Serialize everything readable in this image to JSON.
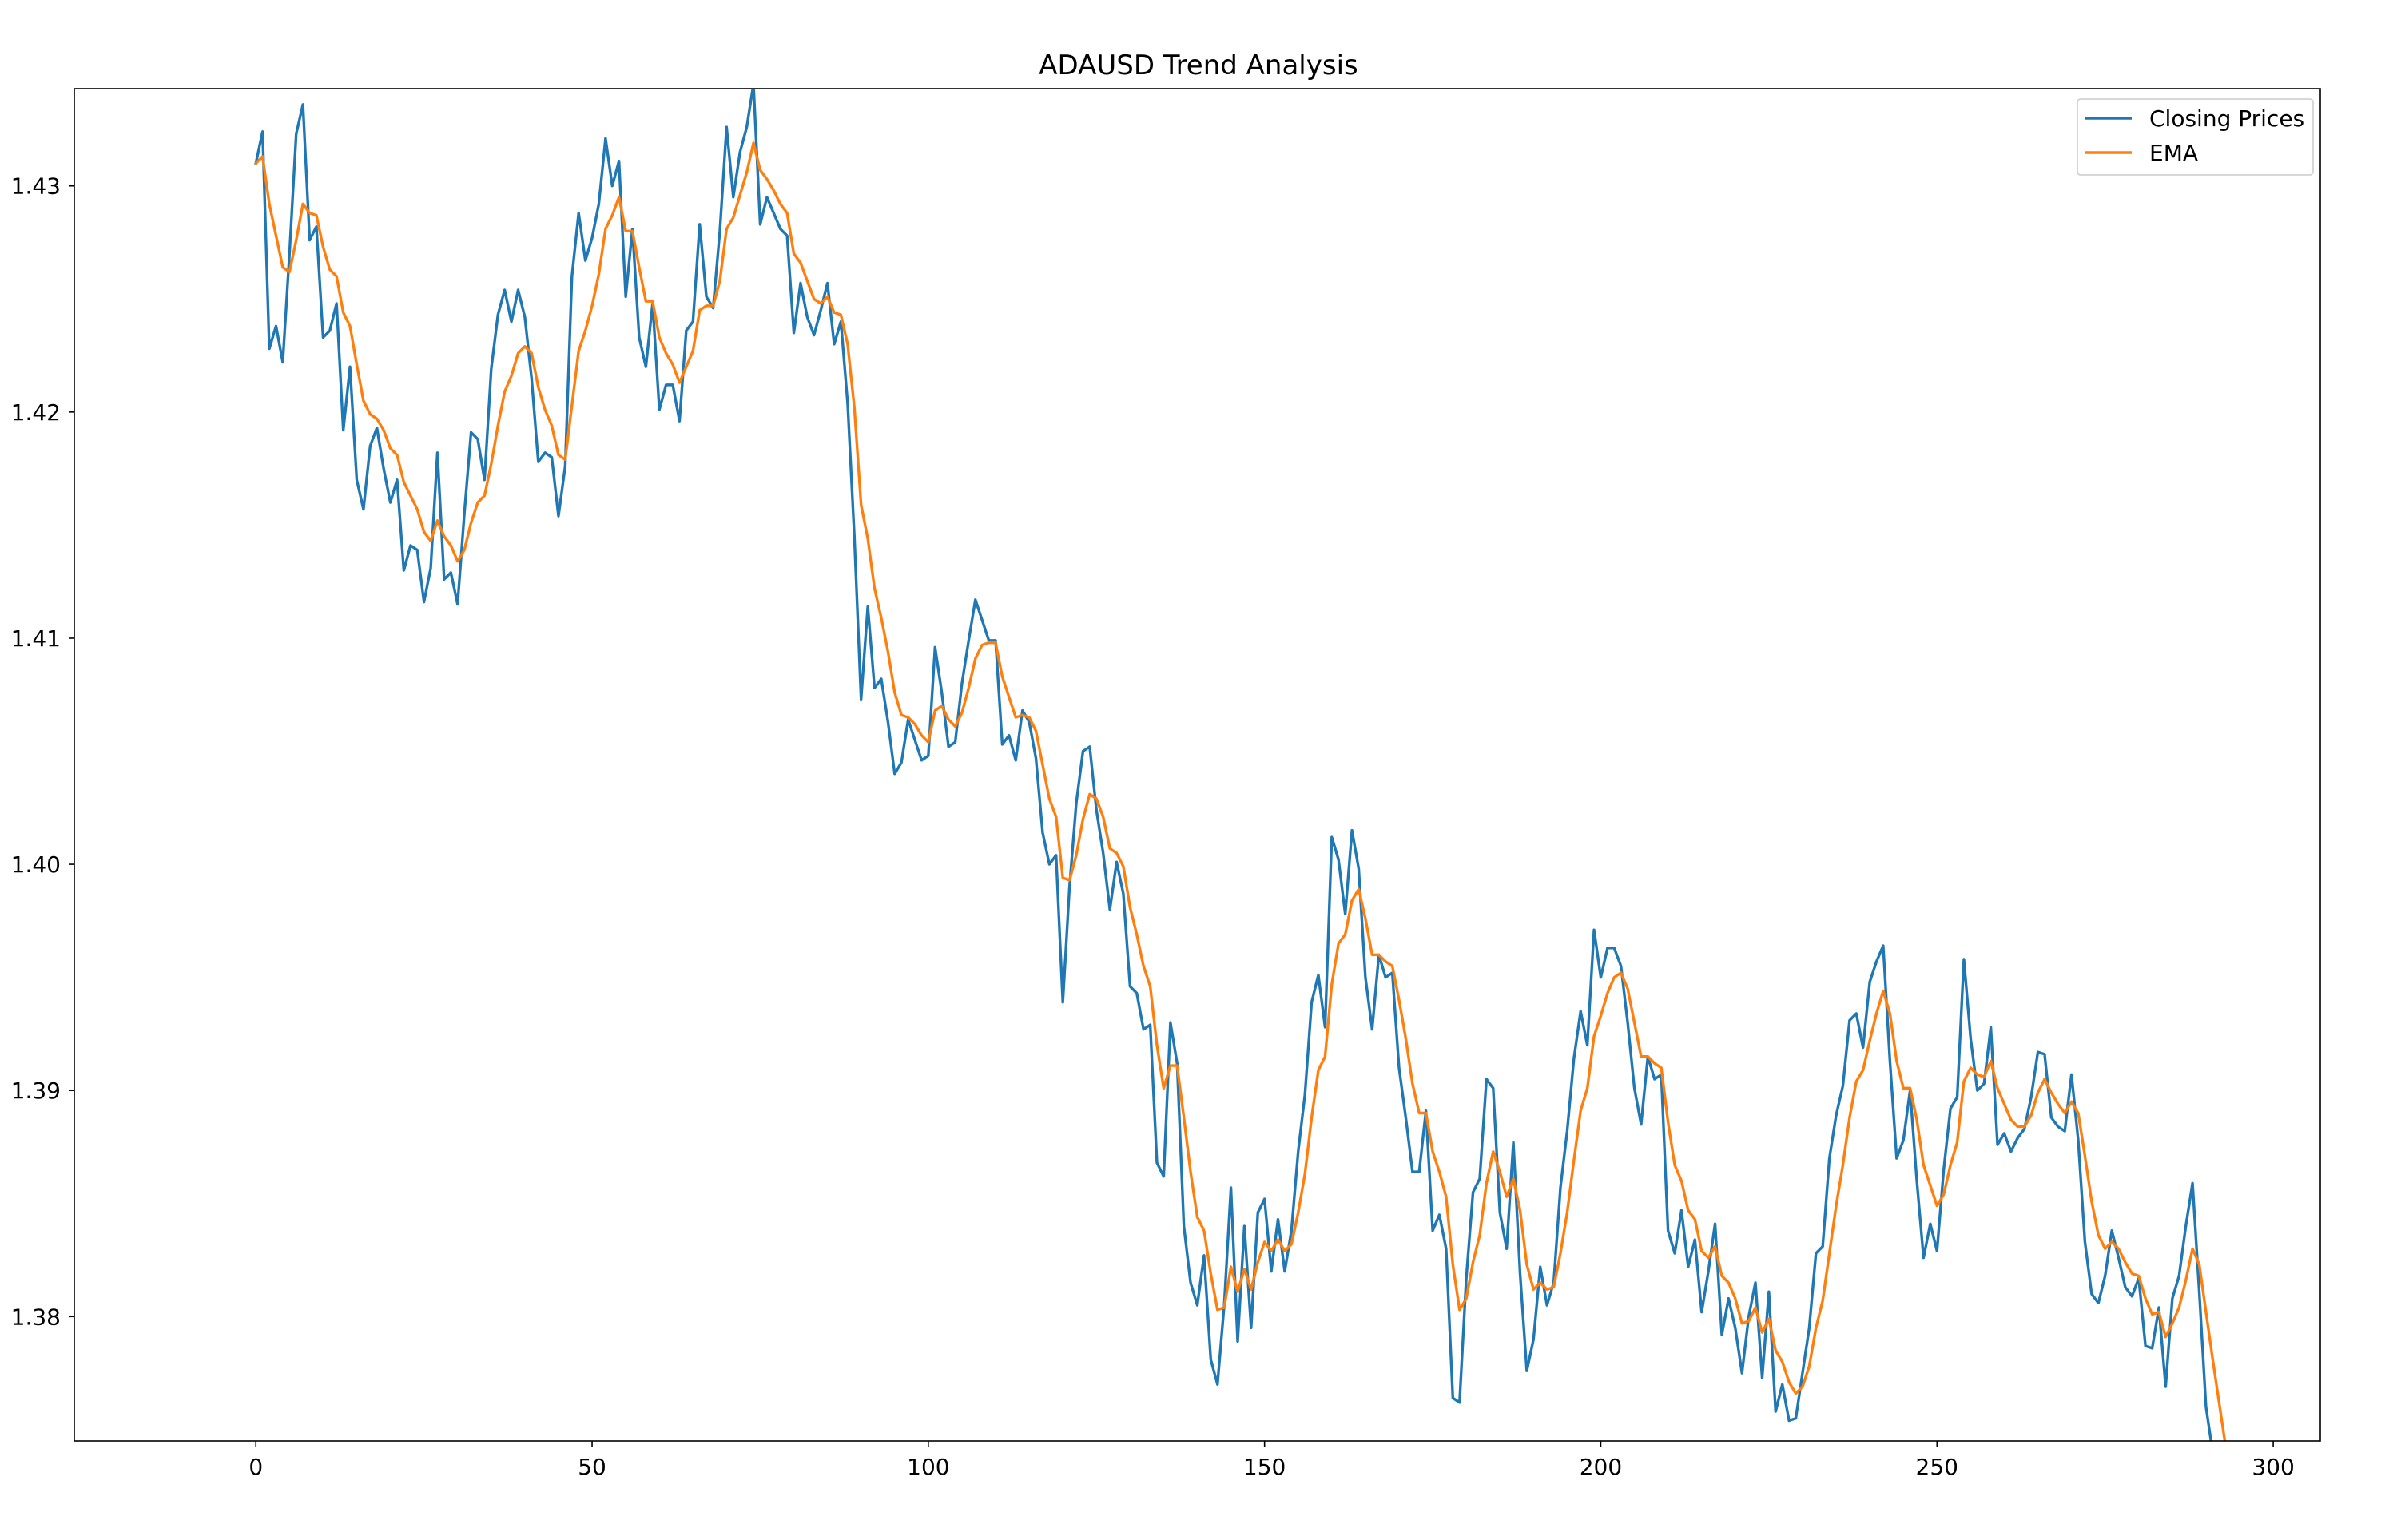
{
  "chart_data": {
    "type": "line",
    "title": "ADAUSD Trend Analysis",
    "xlabel": "",
    "ylabel": "",
    "xlim": [
      -27,
      307
    ],
    "ylim": [
      1.3745,
      1.4343
    ],
    "x_ticks": [
      0,
      50,
      100,
      150,
      200,
      250,
      300
    ],
    "x_tick_labels": [
      "0",
      "50",
      "100",
      "150",
      "200",
      "250",
      "300"
    ],
    "y_ticks": [
      1.38,
      1.39,
      1.4,
      1.41,
      1.42,
      1.43
    ],
    "y_tick_labels": [
      "1.38",
      "1.39",
      "1.40",
      "1.41",
      "1.42",
      "1.43"
    ],
    "grid": false,
    "legend_position": "top-right",
    "series": [
      {
        "name": "Closing Prices",
        "color": "#1f77b4",
        "x_start": 0,
        "values": [
          1.431,
          1.4324,
          1.4228,
          1.4238,
          1.4222,
          1.427,
          1.4323,
          1.4336,
          1.4276,
          1.4282,
          1.4233,
          1.4236,
          1.4248,
          1.4192,
          1.422,
          1.417,
          1.4157,
          1.4185,
          1.4193,
          1.4175,
          1.416,
          1.417,
          1.413,
          1.4141,
          1.4139,
          1.4116,
          1.4131,
          1.4182,
          1.4126,
          1.4129,
          1.4115,
          1.4155,
          1.4191,
          1.4188,
          1.417,
          1.4219,
          1.4243,
          1.4254,
          1.424,
          1.4254,
          1.4242,
          1.4215,
          1.4178,
          1.4182,
          1.418,
          1.4154,
          1.4176,
          1.426,
          1.4288,
          1.4267,
          1.4277,
          1.4292,
          1.4321,
          1.43,
          1.4311,
          1.4251,
          1.4281,
          1.4233,
          1.422,
          1.4248,
          1.4201,
          1.4212,
          1.4212,
          1.4196,
          1.4236,
          1.424,
          1.4283,
          1.4251,
          1.4246,
          1.428,
          1.4326,
          1.4295,
          1.4315,
          1.4326,
          1.4345,
          1.4283,
          1.4295,
          1.4288,
          1.4281,
          1.4278,
          1.4235,
          1.4257,
          1.4242,
          1.4234,
          1.4245,
          1.4257,
          1.423,
          1.424,
          1.4204,
          1.4145,
          1.4073,
          1.4114,
          1.4078,
          1.4082,
          1.4063,
          1.404,
          1.4045,
          1.4064,
          1.4055,
          1.4046,
          1.4048,
          1.4096,
          1.4076,
          1.4052,
          1.4054,
          1.408,
          1.4099,
          1.4117,
          1.4108,
          1.4099,
          1.4099,
          1.4053,
          1.4057,
          1.4046,
          1.4068,
          1.4063,
          1.4047,
          1.4014,
          1.4,
          1.4004,
          1.3939,
          1.399,
          1.4027,
          1.405,
          1.4052,
          1.4024,
          1.4005,
          1.398,
          1.4001,
          1.3987,
          1.3946,
          1.3943,
          1.3927,
          1.3929,
          1.3868,
          1.3862,
          1.393,
          1.3912,
          1.384,
          1.3815,
          1.3805,
          1.3827,
          1.3781,
          1.377,
          1.3805,
          1.3857,
          1.3789,
          1.384,
          1.3795,
          1.3846,
          1.3852,
          1.382,
          1.3843,
          1.382,
          1.3838,
          1.3873,
          1.3898,
          1.3939,
          1.3951,
          1.3928,
          1.4012,
          1.4002,
          1.3978,
          1.4015,
          1.3998,
          1.395,
          1.3927,
          1.396,
          1.395,
          1.3952,
          1.391,
          1.3888,
          1.3864,
          1.3864,
          1.3891,
          1.3838,
          1.3845,
          1.383,
          1.3764,
          1.3762,
          1.3817,
          1.3855,
          1.3861,
          1.3905,
          1.3901,
          1.3846,
          1.383,
          1.3877,
          1.3819,
          1.3776,
          1.379,
          1.3822,
          1.3805,
          1.3815,
          1.3857,
          1.3882,
          1.3914,
          1.3935,
          1.392,
          1.3971,
          1.395,
          1.3963,
          1.3963,
          1.3955,
          1.393,
          1.3901,
          1.3885,
          1.3915,
          1.3905,
          1.3907,
          1.3838,
          1.3828,
          1.3847,
          1.3822,
          1.3834,
          1.3802,
          1.382,
          1.3841,
          1.3792,
          1.3808,
          1.3795,
          1.3775,
          1.38,
          1.3815,
          1.3773,
          1.3811,
          1.3758,
          1.377,
          1.3754,
          1.3755,
          1.3775,
          1.3795,
          1.3828,
          1.3831,
          1.387,
          1.3889,
          1.3902,
          1.3931,
          1.3934,
          1.3919,
          1.3948,
          1.3957,
          1.3964,
          1.3913,
          1.387,
          1.3878,
          1.39,
          1.386,
          1.3826,
          1.3841,
          1.3829,
          1.3865,
          1.3892,
          1.3897,
          1.3958,
          1.3923,
          1.39,
          1.3903,
          1.3928,
          1.3876,
          1.3881,
          1.3873,
          1.3879,
          1.3883,
          1.3897,
          1.3917,
          1.3916,
          1.3888,
          1.3884,
          1.3882,
          1.3907,
          1.3878,
          1.3833,
          1.381,
          1.3806,
          1.3818,
          1.3838,
          1.3826,
          1.3813,
          1.3809,
          1.3817,
          1.3787,
          1.3786,
          1.3804,
          1.3769,
          1.3808,
          1.3818,
          1.384,
          1.3859,
          1.3811,
          1.376,
          1.374,
          1.372,
          1.37
        ]
      },
      {
        "name": "EMA",
        "color": "#ff7f0e",
        "x_start": 0,
        "values": [
          1.431,
          1.4313,
          1.4292,
          1.4278,
          1.4264,
          1.4262,
          1.4276,
          1.4292,
          1.4288,
          1.4287,
          1.4273,
          1.4263,
          1.426,
          1.4244,
          1.4238,
          1.4221,
          1.4205,
          1.4199,
          1.4197,
          1.4192,
          1.4184,
          1.4181,
          1.4169,
          1.4163,
          1.4157,
          1.4147,
          1.4143,
          1.4152,
          1.4145,
          1.4141,
          1.4134,
          1.4139,
          1.4151,
          1.416,
          1.4163,
          1.4177,
          1.4194,
          1.4209,
          1.4216,
          1.4226,
          1.4229,
          1.4226,
          1.4211,
          1.4201,
          1.4194,
          1.4181,
          1.4179,
          1.4203,
          1.4227,
          1.4236,
          1.4247,
          1.4261,
          1.4281,
          1.4287,
          1.4295,
          1.428,
          1.428,
          1.4264,
          1.4249,
          1.4249,
          1.4233,
          1.4226,
          1.4221,
          1.4213,
          1.422,
          1.4227,
          1.4245,
          1.4247,
          1.4247,
          1.4258,
          1.4281,
          1.4286,
          1.4296,
          1.4306,
          1.4319,
          1.4307,
          1.4303,
          1.4298,
          1.4292,
          1.4288,
          1.427,
          1.4266,
          1.4258,
          1.425,
          1.4248,
          1.4251,
          1.4244,
          1.4243,
          1.423,
          1.4202,
          1.4159,
          1.4144,
          1.4122,
          1.4109,
          1.4094,
          1.4076,
          1.4066,
          1.4065,
          1.4062,
          1.4057,
          1.4054,
          1.4068,
          1.407,
          1.4064,
          1.4061,
          1.4067,
          1.4078,
          1.4091,
          1.4097,
          1.4098,
          1.4098,
          1.4083,
          1.4074,
          1.4065,
          1.4066,
          1.4065,
          1.4059,
          1.4044,
          1.4029,
          1.4021,
          1.3994,
          1.3993,
          1.4004,
          1.402,
          1.4031,
          1.4029,
          1.4021,
          1.4007,
          1.4005,
          1.3999,
          1.3981,
          1.3969,
          1.3955,
          1.3946,
          1.392,
          1.3901,
          1.3911,
          1.3911,
          1.3888,
          1.3864,
          1.3844,
          1.3838,
          1.3819,
          1.3803,
          1.3804,
          1.3822,
          1.3811,
          1.3821,
          1.3812,
          1.3824,
          1.3833,
          1.3829,
          1.3834,
          1.3829,
          1.3832,
          1.3846,
          1.3863,
          1.3888,
          1.3909,
          1.3915,
          1.3947,
          1.3965,
          1.3969,
          1.3984,
          1.3989,
          1.3976,
          1.396,
          1.396,
          1.3957,
          1.3955,
          1.394,
          1.3923,
          1.3903,
          1.389,
          1.389,
          1.3873,
          1.3864,
          1.3853,
          1.3823,
          1.3803,
          1.3808,
          1.3824,
          1.3836,
          1.3859,
          1.3873,
          1.3864,
          1.3853,
          1.3861,
          1.3847,
          1.3823,
          1.3812,
          1.3815,
          1.3812,
          1.3813,
          1.3828,
          1.3846,
          1.3869,
          1.3891,
          1.3901,
          1.3924,
          1.3933,
          1.3943,
          1.395,
          1.3952,
          1.3945,
          1.393,
          1.3915,
          1.3915,
          1.3912,
          1.391,
          1.3886,
          1.3867,
          1.386,
          1.3847,
          1.3843,
          1.3829,
          1.3826,
          1.3831,
          1.3818,
          1.3815,
          1.3808,
          1.3797,
          1.3798,
          1.3804,
          1.3793,
          1.3799,
          1.3785,
          1.378,
          1.3771,
          1.3766,
          1.3769,
          1.3778,
          1.3795,
          1.3807,
          1.3828,
          1.3849,
          1.3867,
          1.3888,
          1.3904,
          1.3909,
          1.3922,
          1.3934,
          1.3944,
          1.3934,
          1.3913,
          1.3901,
          1.3901,
          1.3887,
          1.3867,
          1.3858,
          1.3849,
          1.3854,
          1.3867,
          1.3877,
          1.3904,
          1.391,
          1.3907,
          1.3906,
          1.3913,
          1.3901,
          1.3894,
          1.3887,
          1.3884,
          1.3884,
          1.3889,
          1.3899,
          1.3905,
          1.3899,
          1.3894,
          1.389,
          1.3895,
          1.389,
          1.3871,
          1.3851,
          1.3836,
          1.383,
          1.3833,
          1.383,
          1.3824,
          1.3819,
          1.3818,
          1.3808,
          1.3801,
          1.3802,
          1.3791,
          1.3797,
          1.3804,
          1.3816,
          1.383,
          1.3823,
          1.3802,
          1.3781,
          1.3761,
          1.3741
        ]
      }
    ]
  }
}
